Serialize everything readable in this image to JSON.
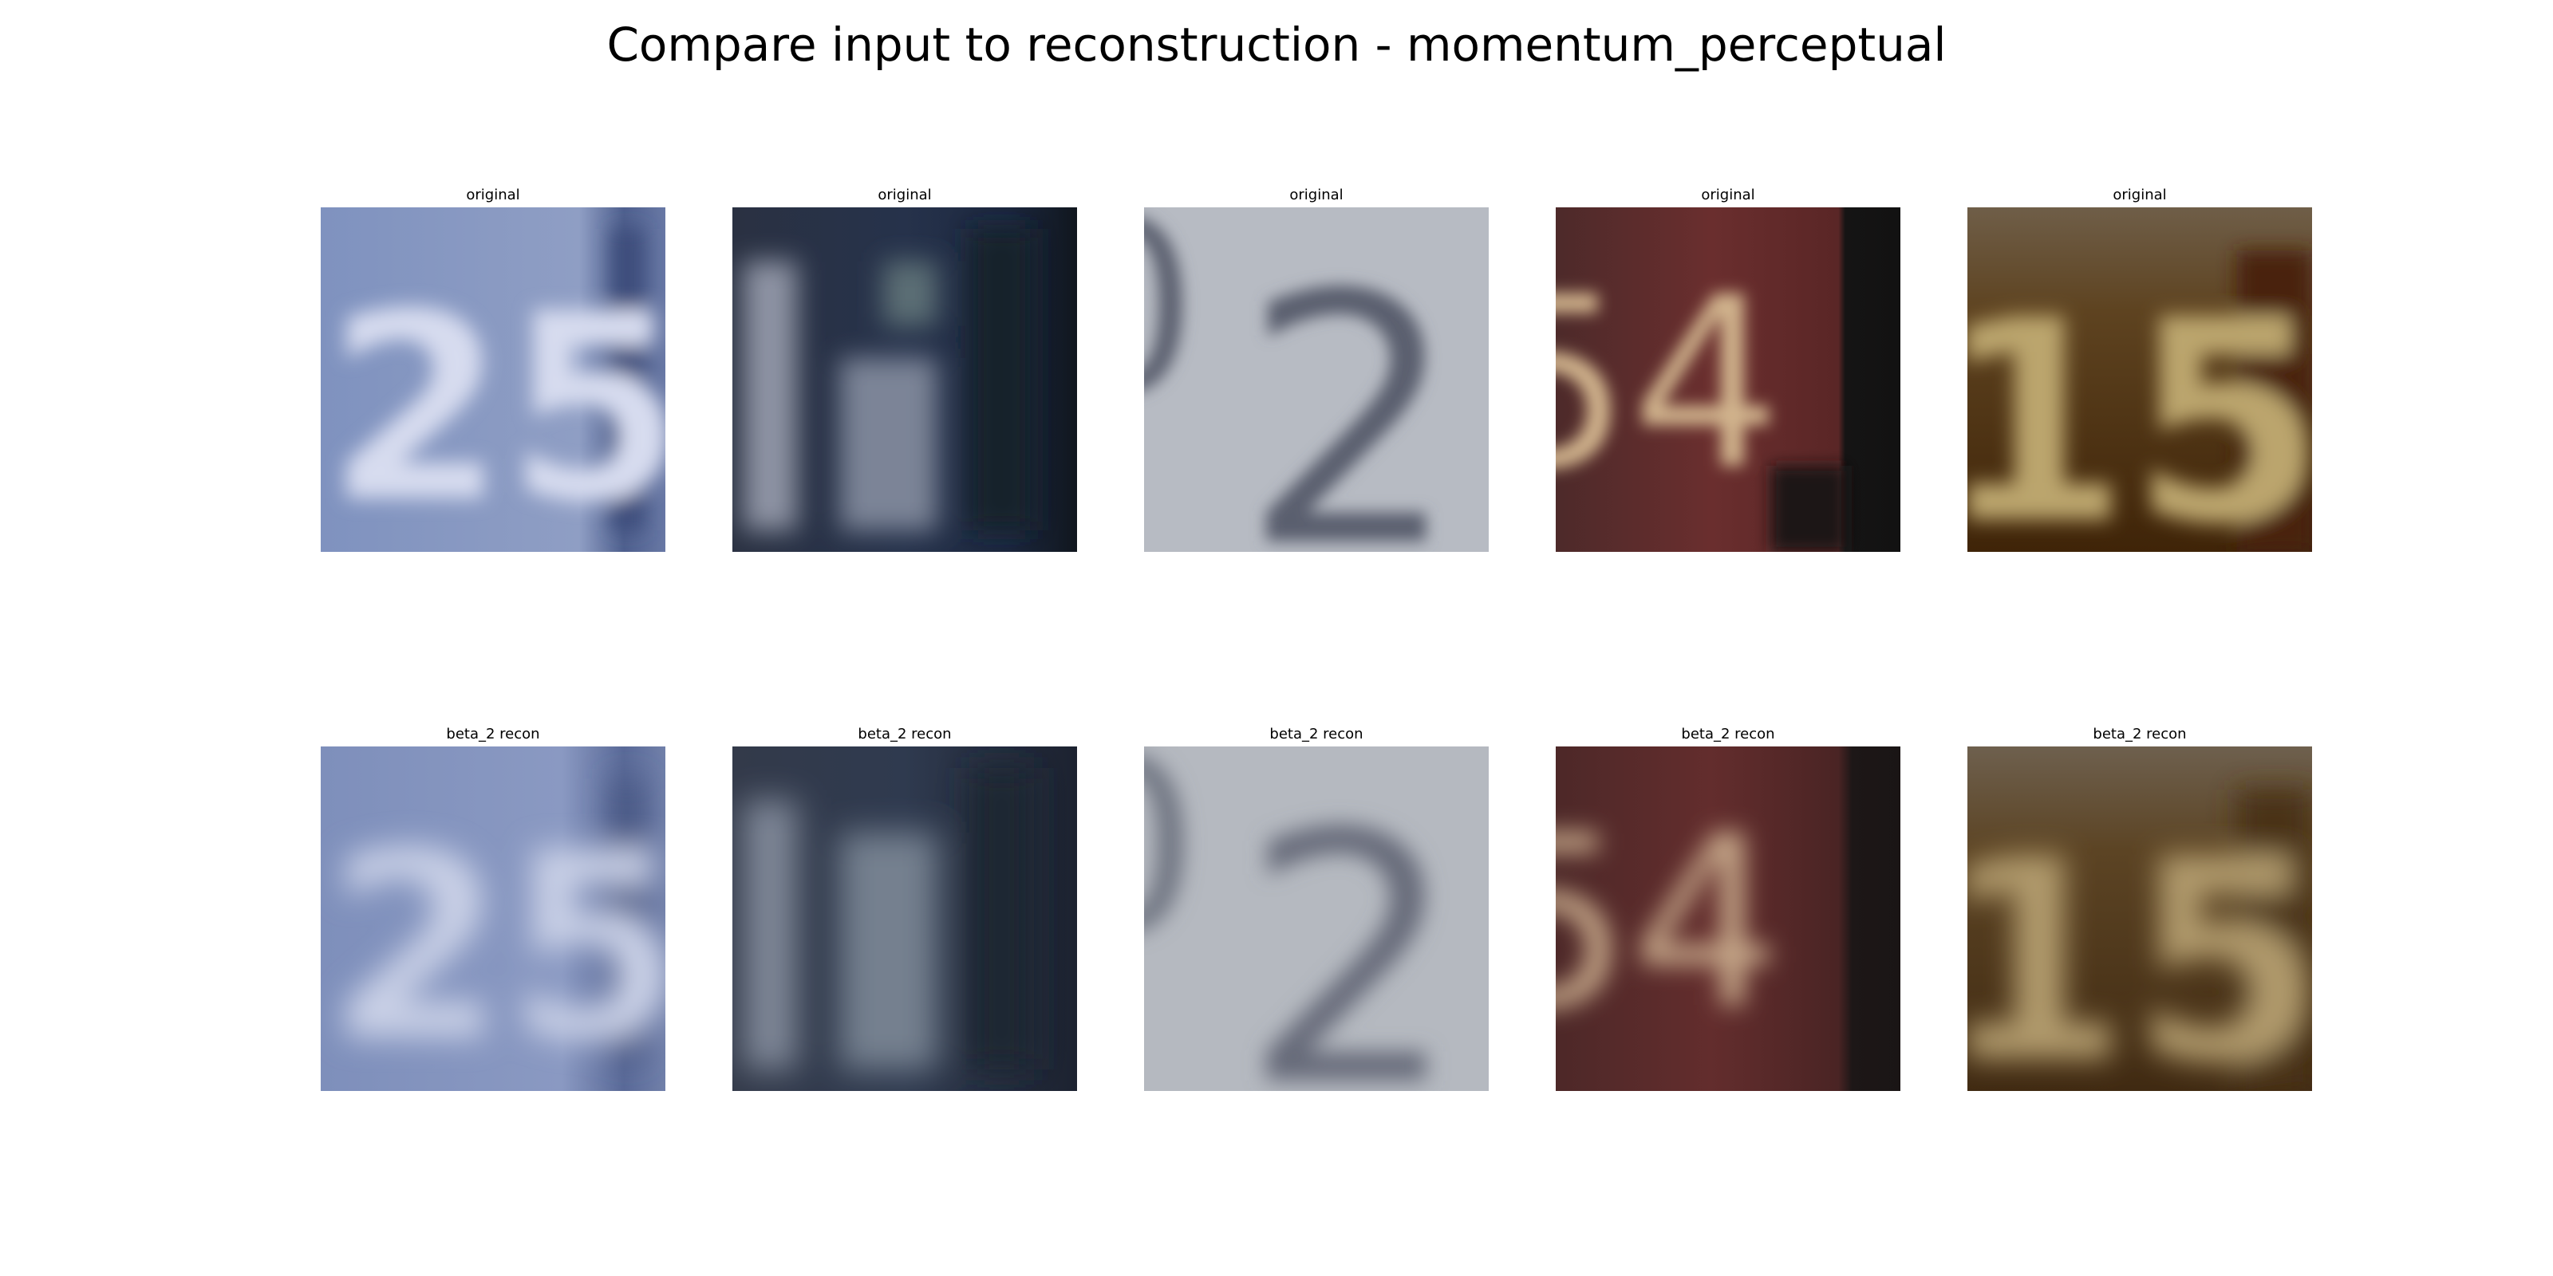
{
  "figure": {
    "title": "Compare input to reconstruction - momentum_perceptual"
  },
  "rows": [
    {
      "panels": [
        {
          "title": "original",
          "digits": "25",
          "scene": "light-blue house plate with pale digits",
          "palette": {
            "bg": "#8294bb",
            "bg_dark": "#5b6b95",
            "edge": "#3f4f7e",
            "glyph": "#d7dcef"
          }
        },
        {
          "title": "original",
          "digits": "11",
          "scene": "dark navy plate with grey digits",
          "palette": {
            "bg": "#202838",
            "bg_dark": "#0f1521",
            "edge": "#141c26",
            "glyph": "#8e97a8"
          }
        },
        {
          "title": "original",
          "digits": "02",
          "scene": "light grey plate with dark digits",
          "palette": {
            "bg": "#b6bac2",
            "bg_dark": "#a7abb4",
            "edge": "#8e929b",
            "glyph": "#5a5f6e"
          }
        },
        {
          "title": "original",
          "digits": "54",
          "scene": "dark red plate with cream digits, black right edge",
          "palette": {
            "bg": "#5c2b2b",
            "bg_dark": "#3b1e1f",
            "edge": "#141312",
            "glyph": "#d1b48d"
          }
        },
        {
          "title": "original",
          "digits": "15",
          "scene": "brown plate with tan digits",
          "palette": {
            "bg": "#5b3a16",
            "bg_dark": "#3a2106",
            "edge": "#4a2408",
            "glyph": "#bba56d"
          }
        }
      ]
    },
    {
      "panels": [
        {
          "title": "beta_2 recon",
          "digits": "25",
          "scene": "blurred light-blue plate",
          "palette": {
            "bg": "#8594bc",
            "bg_dark": "#6878a3",
            "edge": "#485884",
            "glyph": "#c9d0e6"
          }
        },
        {
          "title": "beta_2 recon",
          "digits": "11",
          "scene": "blurred dark navy plate",
          "palette": {
            "bg": "#2a3242",
            "bg_dark": "#1a2030",
            "edge": "#1f2634",
            "glyph": "#7d8797"
          }
        },
        {
          "title": "beta_2 recon",
          "digits": "02",
          "scene": "blurred light grey plate",
          "palette": {
            "bg": "#b4b8bf",
            "bg_dark": "#a6aab2",
            "edge": "#8f939b",
            "glyph": "#666b79"
          }
        },
        {
          "title": "beta_2 recon",
          "digits": "54",
          "scene": "blurred dark red plate",
          "palette": {
            "bg": "#5a2a2a",
            "bg_dark": "#3b2020",
            "edge": "#1c1616",
            "glyph": "#c7a98a"
          }
        },
        {
          "title": "beta_2 recon",
          "digits": "15",
          "scene": "blurred brown plate",
          "palette": {
            "bg": "#5c4020",
            "bg_dark": "#3f2a12",
            "edge": "#4a3016",
            "glyph": "#b09a6c"
          }
        }
      ]
    }
  ]
}
